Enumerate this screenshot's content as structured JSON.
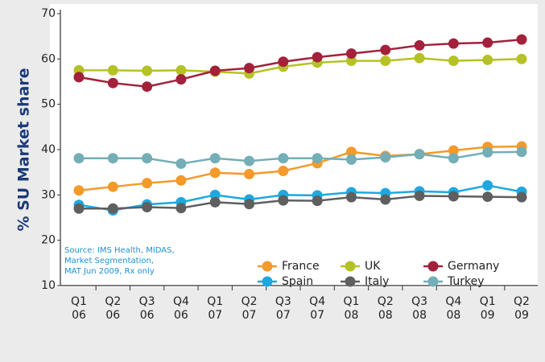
{
  "chart_data": {
    "type": "line",
    "y_label": "% SU Market share",
    "source": [
      "Source: IMS Health, MIDAS,",
      "Market Segmentation,",
      "MAT Jun 2009, Rx only"
    ],
    "categories": [
      [
        "Q1",
        "06"
      ],
      [
        "Q2",
        "06"
      ],
      [
        "Q3",
        "06"
      ],
      [
        "Q4",
        "06"
      ],
      [
        "Q1",
        "07"
      ],
      [
        "Q2",
        "07"
      ],
      [
        "Q3",
        "07"
      ],
      [
        "Q4",
        "07"
      ],
      [
        "Q1",
        "08"
      ],
      [
        "Q2",
        "08"
      ],
      [
        "Q3",
        "08"
      ],
      [
        "Q4",
        "08"
      ],
      [
        "Q1",
        "09"
      ],
      [
        "Q2",
        "09"
      ]
    ],
    "ylim": [
      10,
      70
    ],
    "yticks": [
      10,
      20,
      30,
      40,
      50,
      60,
      70
    ],
    "grid": false,
    "series": [
      {
        "name": "France",
        "color": "#f39a2a",
        "values": [
          31,
          31.8,
          32.6,
          33.2,
          34.9,
          34.6,
          35.3,
          37,
          39.5,
          38.6,
          39,
          39.8,
          40.6,
          40.7
        ]
      },
      {
        "name": "UK",
        "color": "#b5c225",
        "values": [
          57.5,
          57.5,
          57.4,
          57.5,
          57.2,
          56.8,
          58.3,
          59.2,
          59.6,
          59.6,
          60.2,
          59.6,
          59.8,
          60
        ]
      },
      {
        "name": "Germany",
        "color": "#a3213a",
        "values": [
          56,
          54.7,
          53.9,
          55.5,
          57.4,
          58,
          59.4,
          60.4,
          61.2,
          62,
          63,
          63.4,
          63.6,
          64.3
        ]
      },
      {
        "name": "Spain",
        "color": "#1ea8e0",
        "values": [
          27.8,
          26.6,
          27.9,
          28.4,
          30,
          29,
          30,
          29.9,
          30.6,
          30.4,
          30.8,
          30.6,
          32.1,
          30.7
        ]
      },
      {
        "name": "Italy",
        "color": "#5f5f5f",
        "values": [
          27,
          27,
          27.3,
          27.1,
          28.4,
          28,
          28.8,
          28.7,
          29.5,
          29,
          29.8,
          29.7,
          29.6,
          29.5
        ]
      },
      {
        "name": "Turkey",
        "color": "#74aeb6",
        "values": [
          38.1,
          38.1,
          38.1,
          36.9,
          38.1,
          37.5,
          38.1,
          38.1,
          37.8,
          38.3,
          39,
          38.1,
          39.4,
          39.5
        ]
      }
    ]
  }
}
